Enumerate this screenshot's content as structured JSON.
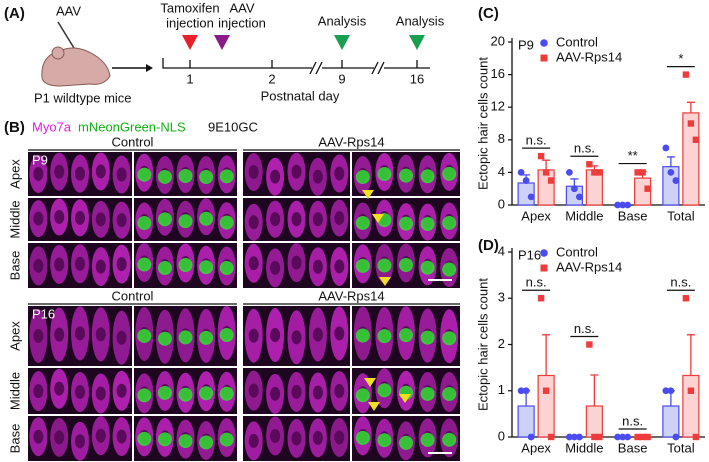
{
  "panel_a": {
    "label": "(A)",
    "vector": "AAV",
    "mouse": "P1 wildtype mice",
    "tamoxifen": [
      "Tamoxifen",
      "injection"
    ],
    "aav_injection": [
      "AAV",
      "injection"
    ],
    "analysis": [
      "Analysis",
      "Analysis"
    ],
    "days": [
      "1",
      "2",
      "9",
      "16"
    ],
    "axis_label": "Postnatal day"
  },
  "panel_b": {
    "label": "(B)",
    "stain_1": "Myo7a",
    "stain_2": "mNeonGreen-NLS",
    "dose": "9E10GC",
    "groups": [
      "Control",
      "AAV-Rps14"
    ],
    "blocks": [
      {
        "age": "P9",
        "rows": [
          "Apex",
          "Middle",
          "Base"
        ]
      },
      {
        "age": "P16",
        "rows": [
          "Apex",
          "Middle",
          "Base"
        ]
      }
    ]
  },
  "chart_data": [
    {
      "type": "bar",
      "panel_label": "(C)",
      "subtitle": "P9",
      "ylabel": "Ectopic hair cells count",
      "categories": [
        "Apex",
        "Middle",
        "Base",
        "Total"
      ],
      "ylim": [
        0,
        20
      ],
      "yticks": [
        0,
        4,
        8,
        12,
        16,
        20
      ],
      "significance": [
        "n.s.",
        "n.s.",
        "**",
        "*"
      ],
      "series": [
        {
          "name": "Control",
          "color": "#4b4bf0",
          "fill": "#ccd2f6",
          "marker": "circle",
          "values": [
            2.7,
            2.3,
            0,
            4.7
          ],
          "errors": [
            1.0,
            0.9,
            0,
            1.2
          ],
          "points": [
            [
              4,
              3,
              1
            ],
            [
              4,
              2,
              1
            ],
            [
              0,
              0,
              0
            ],
            [
              7,
              4,
              3
            ]
          ]
        },
        {
          "name": "AAV-Rps14",
          "color": "#ee3b3b",
          "fill": "#fbd3d3",
          "marker": "square",
          "values": [
            4.3,
            4.3,
            3.3,
            11.3
          ],
          "errors": [
            1.2,
            0.5,
            0.8,
            1.3
          ],
          "points": [
            [
              6,
              4,
              3
            ],
            [
              5,
              4,
              4
            ],
            [
              4,
              4,
              2
            ],
            [
              16,
              10,
              8
            ]
          ]
        }
      ]
    },
    {
      "type": "bar",
      "panel_label": "(D)",
      "subtitle": "P16",
      "ylabel": "Ectopic hair cells count",
      "categories": [
        "Apex",
        "Middle",
        "Base",
        "Total"
      ],
      "ylim": [
        0,
        4
      ],
      "yticks": [
        0,
        1,
        2,
        3,
        4
      ],
      "significance": [
        "n.s.",
        "n.s.",
        "n.s.",
        "n.s."
      ],
      "series": [
        {
          "name": "Control",
          "color": "#4b4bf0",
          "fill": "#ccd2f6",
          "marker": "circle",
          "values": [
            0.67,
            0,
            0,
            0.67
          ],
          "errors": [
            0.33,
            0,
            0,
            0.33
          ],
          "points": [
            [
              1,
              1,
              0
            ],
            [
              0,
              0,
              0
            ],
            [
              0,
              0,
              0
            ],
            [
              1,
              1,
              0
            ]
          ]
        },
        {
          "name": "AAV-Rps14",
          "color": "#ee3b3b",
          "fill": "#fbd3d3",
          "marker": "square",
          "values": [
            1.33,
            0.67,
            0,
            1.33
          ],
          "errors": [
            0.88,
            0.67,
            0,
            0.88
          ],
          "points": [
            [
              3,
              1,
              0
            ],
            [
              2,
              0,
              0
            ],
            [
              0,
              0,
              0
            ],
            [
              3,
              1,
              0
            ]
          ]
        }
      ]
    }
  ]
}
